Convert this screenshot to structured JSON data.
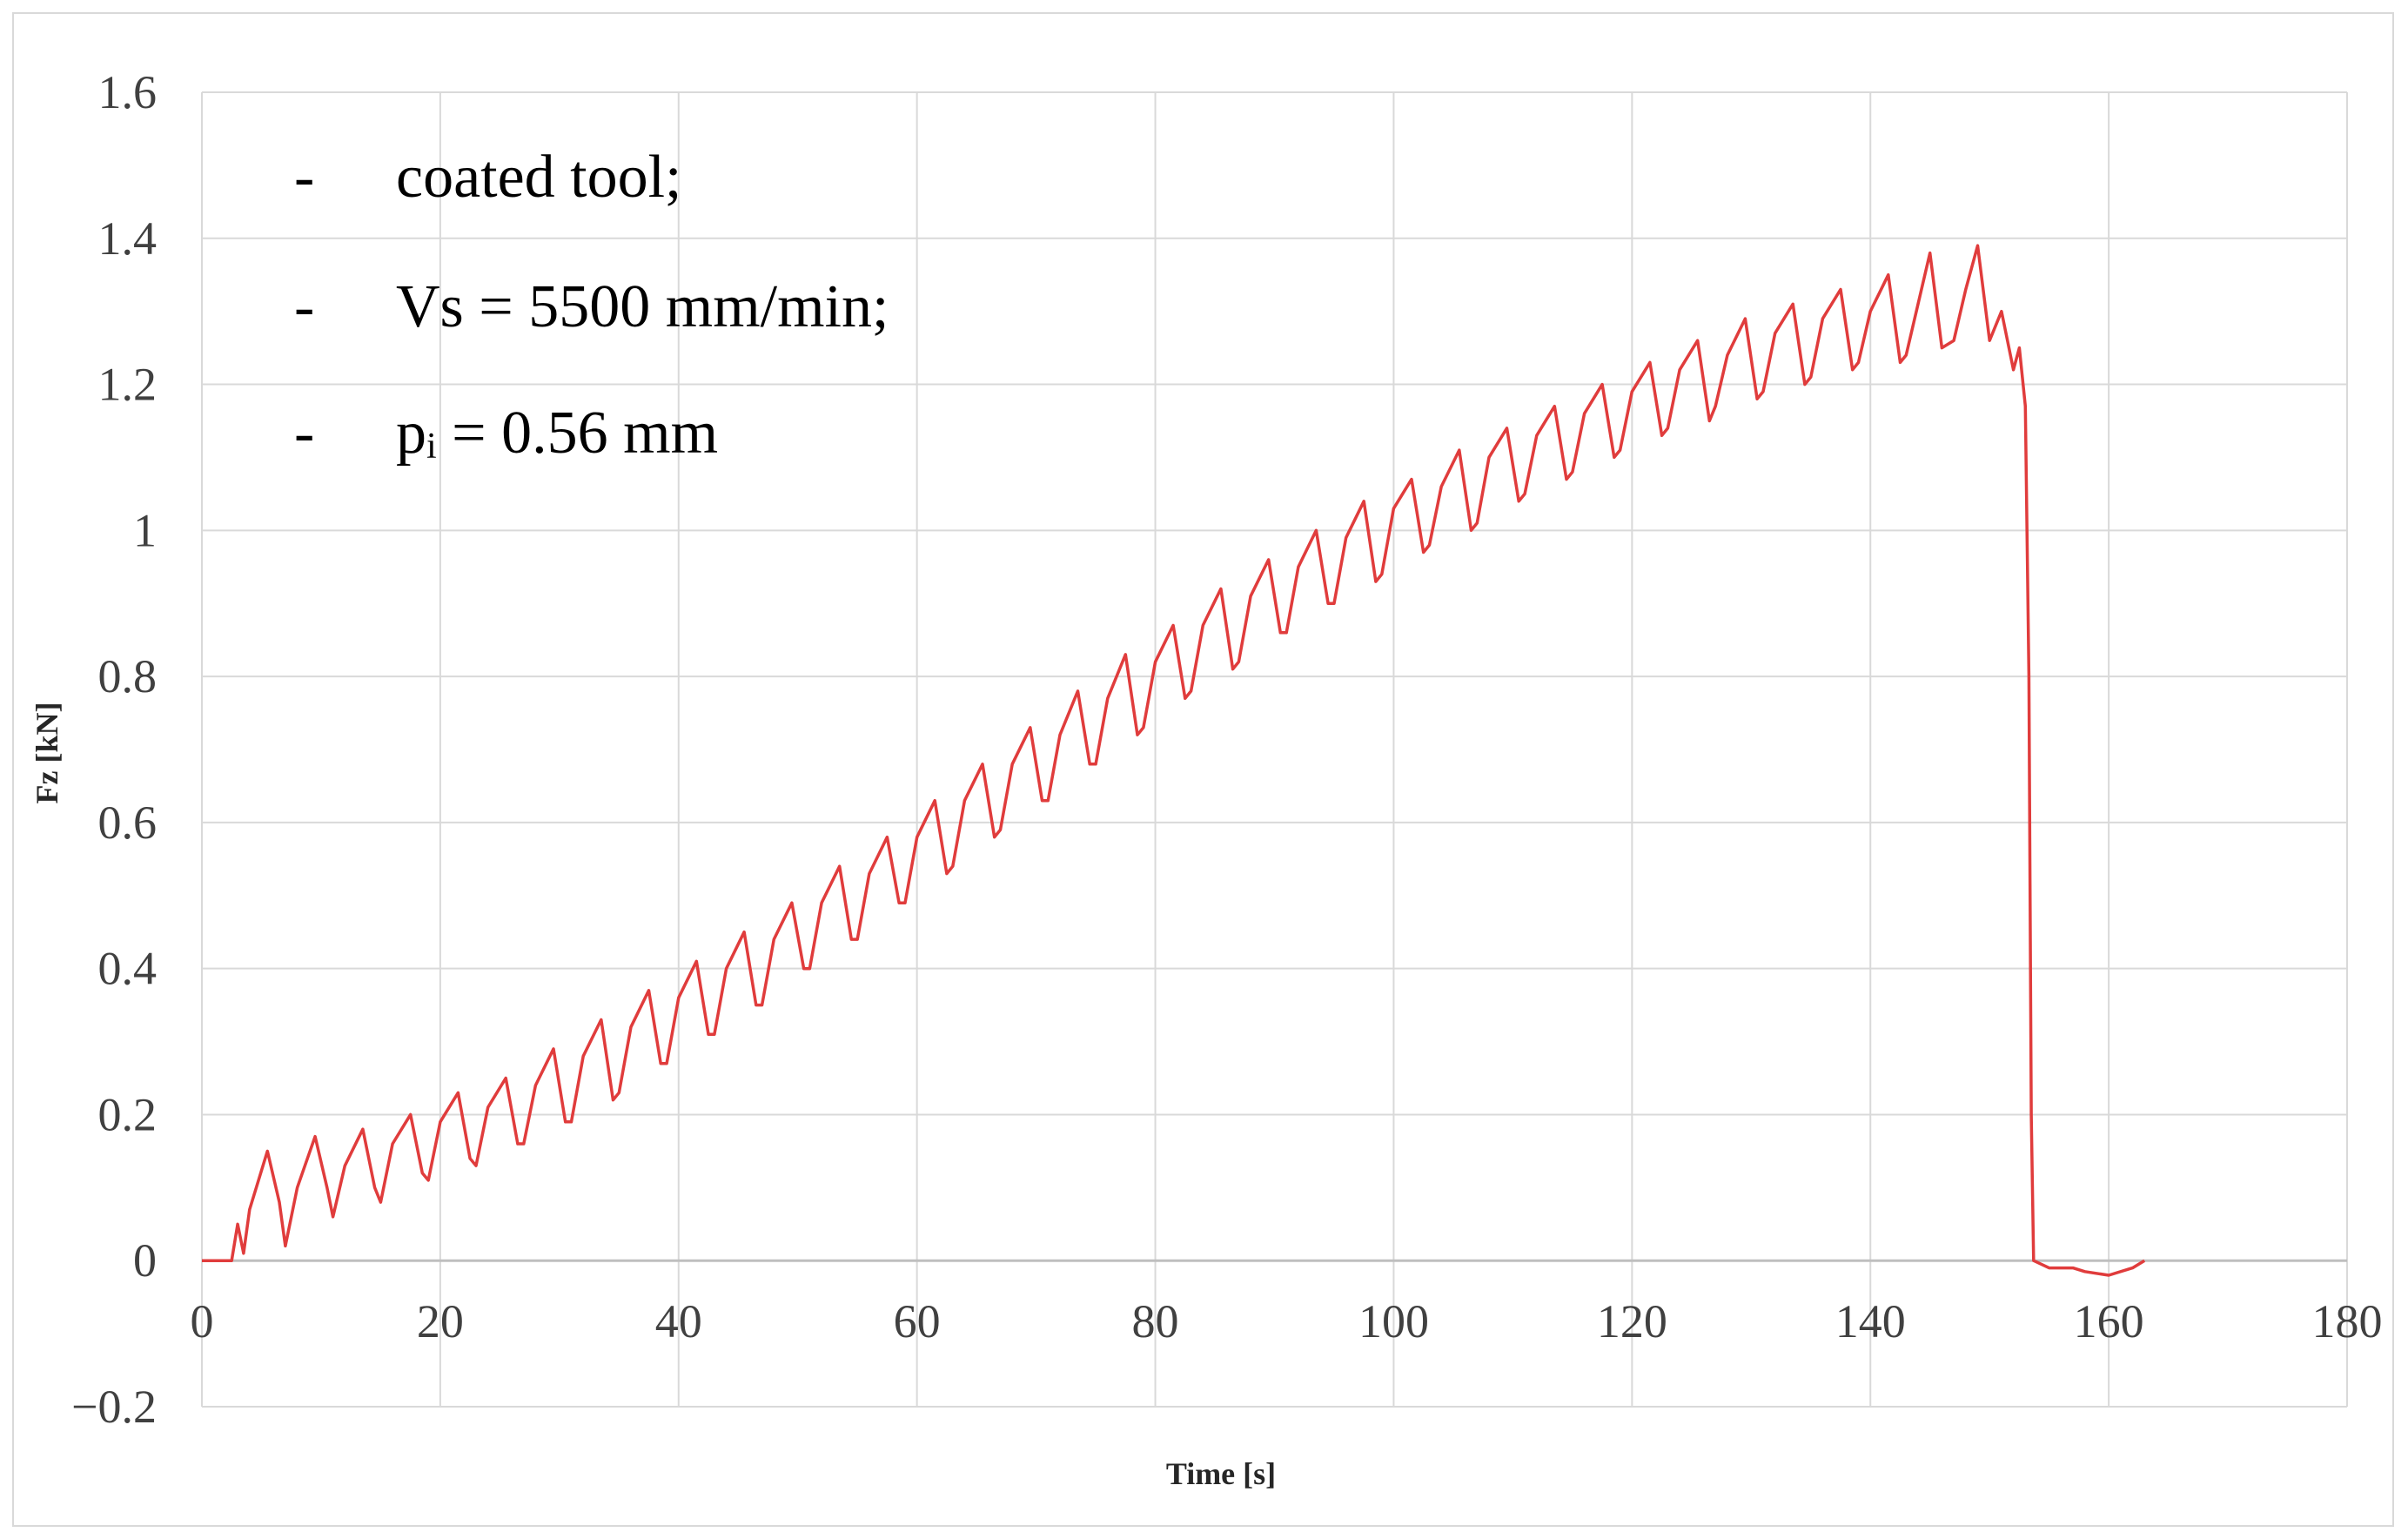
{
  "chart_data": {
    "type": "line",
    "title": "",
    "xlabel": "Time [s]",
    "ylabel": "Fz [kN]",
    "xlim": [
      0,
      180
    ],
    "ylim": [
      -0.2,
      1.6
    ],
    "xticks": [
      0,
      20,
      40,
      60,
      80,
      100,
      120,
      140,
      160,
      180
    ],
    "yticks": [
      -0.2,
      0,
      0.2,
      0.4,
      0.6,
      0.8,
      1.0,
      1.2,
      1.4,
      1.6
    ],
    "ytick_labels": [
      "−0.2",
      "0",
      "0.2",
      "0.4",
      "0.6",
      "0.8",
      "1",
      "1.2",
      "1.4",
      "1.6"
    ],
    "xtick_labels": [
      "0",
      "20",
      "40",
      "60",
      "80",
      "100",
      "120",
      "140",
      "160",
      "180"
    ],
    "grid": true,
    "series": [
      {
        "name": "Fz",
        "color": "#e03c3c",
        "points": [
          [
            0,
            0
          ],
          [
            2.5,
            0
          ],
          [
            3,
            0.05
          ],
          [
            3.5,
            0.01
          ],
          [
            4,
            0.07
          ],
          [
            5.5,
            0.15
          ],
          [
            6.5,
            0.08
          ],
          [
            7,
            0.02
          ],
          [
            8,
            0.1
          ],
          [
            9.5,
            0.17
          ],
          [
            10.5,
            0.1
          ],
          [
            11,
            0.06
          ],
          [
            12,
            0.13
          ],
          [
            13.5,
            0.18
          ],
          [
            14.5,
            0.1
          ],
          [
            15,
            0.08
          ],
          [
            16,
            0.16
          ],
          [
            17.5,
            0.2
          ],
          [
            18.5,
            0.12
          ],
          [
            19,
            0.11
          ],
          [
            20,
            0.19
          ],
          [
            21.5,
            0.23
          ],
          [
            22.5,
            0.14
          ],
          [
            23,
            0.13
          ],
          [
            24,
            0.21
          ],
          [
            25.5,
            0.25
          ],
          [
            26.5,
            0.16
          ],
          [
            27,
            0.16
          ],
          [
            28,
            0.24
          ],
          [
            29.5,
            0.29
          ],
          [
            30.5,
            0.19
          ],
          [
            31,
            0.19
          ],
          [
            32,
            0.28
          ],
          [
            33.5,
            0.33
          ],
          [
            34.5,
            0.22
          ],
          [
            35,
            0.23
          ],
          [
            36,
            0.32
          ],
          [
            37.5,
            0.37
          ],
          [
            38.5,
            0.27
          ],
          [
            39,
            0.27
          ],
          [
            40,
            0.36
          ],
          [
            41.5,
            0.41
          ],
          [
            42.5,
            0.31
          ],
          [
            43,
            0.31
          ],
          [
            44,
            0.4
          ],
          [
            45.5,
            0.45
          ],
          [
            46.5,
            0.35
          ],
          [
            47,
            0.35
          ],
          [
            48,
            0.44
          ],
          [
            49.5,
            0.49
          ],
          [
            50.5,
            0.4
          ],
          [
            51,
            0.4
          ],
          [
            52,
            0.49
          ],
          [
            53.5,
            0.54
          ],
          [
            54.5,
            0.44
          ],
          [
            55,
            0.44
          ],
          [
            56,
            0.53
          ],
          [
            57.5,
            0.58
          ],
          [
            58.5,
            0.49
          ],
          [
            59,
            0.49
          ],
          [
            60,
            0.58
          ],
          [
            61.5,
            0.63
          ],
          [
            62.5,
            0.53
          ],
          [
            63,
            0.54
          ],
          [
            64,
            0.63
          ],
          [
            65.5,
            0.68
          ],
          [
            66.5,
            0.58
          ],
          [
            67,
            0.59
          ],
          [
            68,
            0.68
          ],
          [
            69.5,
            0.73
          ],
          [
            70.5,
            0.63
          ],
          [
            71,
            0.63
          ],
          [
            72,
            0.72
          ],
          [
            73.5,
            0.78
          ],
          [
            74.5,
            0.68
          ],
          [
            75,
            0.68
          ],
          [
            76,
            0.77
          ],
          [
            77.5,
            0.83
          ],
          [
            78.5,
            0.72
          ],
          [
            79,
            0.73
          ],
          [
            80,
            0.82
          ],
          [
            81.5,
            0.87
          ],
          [
            82.5,
            0.77
          ],
          [
            83,
            0.78
          ],
          [
            84,
            0.87
          ],
          [
            85.5,
            0.92
          ],
          [
            86.5,
            0.81
          ],
          [
            87,
            0.82
          ],
          [
            88,
            0.91
          ],
          [
            89.5,
            0.96
          ],
          [
            90.5,
            0.86
          ],
          [
            91,
            0.86
          ],
          [
            92,
            0.95
          ],
          [
            93.5,
            1.0
          ],
          [
            94.5,
            0.9
          ],
          [
            95,
            0.9
          ],
          [
            96,
            0.99
          ],
          [
            97.5,
            1.04
          ],
          [
            98.5,
            0.93
          ],
          [
            99,
            0.94
          ],
          [
            100,
            1.03
          ],
          [
            101.5,
            1.07
          ],
          [
            102.5,
            0.97
          ],
          [
            103,
            0.98
          ],
          [
            104,
            1.06
          ],
          [
            105.5,
            1.11
          ],
          [
            106.5,
            1.0
          ],
          [
            107,
            1.01
          ],
          [
            108,
            1.1
          ],
          [
            109.5,
            1.14
          ],
          [
            110.5,
            1.04
          ],
          [
            111,
            1.05
          ],
          [
            112,
            1.13
          ],
          [
            113.5,
            1.17
          ],
          [
            114.5,
            1.07
          ],
          [
            115,
            1.08
          ],
          [
            116,
            1.16
          ],
          [
            117.5,
            1.2
          ],
          [
            118.5,
            1.1
          ],
          [
            119,
            1.11
          ],
          [
            120,
            1.19
          ],
          [
            121.5,
            1.23
          ],
          [
            122.5,
            1.13
          ],
          [
            123,
            1.14
          ],
          [
            124,
            1.22
          ],
          [
            125.5,
            1.26
          ],
          [
            126.5,
            1.15
          ],
          [
            127,
            1.17
          ],
          [
            128,
            1.24
          ],
          [
            129.5,
            1.29
          ],
          [
            130.5,
            1.18
          ],
          [
            131,
            1.19
          ],
          [
            132,
            1.27
          ],
          [
            133.5,
            1.31
          ],
          [
            134.5,
            1.2
          ],
          [
            135,
            1.21
          ],
          [
            136,
            1.29
          ],
          [
            137.5,
            1.33
          ],
          [
            138.5,
            1.22
          ],
          [
            139,
            1.23
          ],
          [
            140,
            1.3
          ],
          [
            141.5,
            1.35
          ],
          [
            142.5,
            1.23
          ],
          [
            143,
            1.24
          ],
          [
            144,
            1.31
          ],
          [
            145,
            1.38
          ],
          [
            146,
            1.25
          ],
          [
            147,
            1.26
          ],
          [
            148,
            1.33
          ],
          [
            149,
            1.39
          ],
          [
            150,
            1.26
          ],
          [
            151,
            1.3
          ],
          [
            152,
            1.22
          ],
          [
            152.5,
            1.25
          ],
          [
            153,
            1.17
          ],
          [
            153.3,
            0.8
          ],
          [
            153.5,
            0.2
          ],
          [
            153.7,
            0.0
          ],
          [
            155,
            -0.01
          ],
          [
            157,
            -0.01
          ],
          [
            158,
            -0.015
          ],
          [
            160,
            -0.02
          ],
          [
            162,
            -0.01
          ],
          [
            163,
            0
          ]
        ]
      }
    ],
    "annotations": [
      {
        "bullet": "-",
        "text": "coated tool;"
      },
      {
        "bullet": "-",
        "text": "Vs = 5500 mm/min;"
      },
      {
        "bullet": "-",
        "text_main": "p",
        "text_sub": "i",
        "text_rest": " = 0.56 mm"
      }
    ]
  }
}
